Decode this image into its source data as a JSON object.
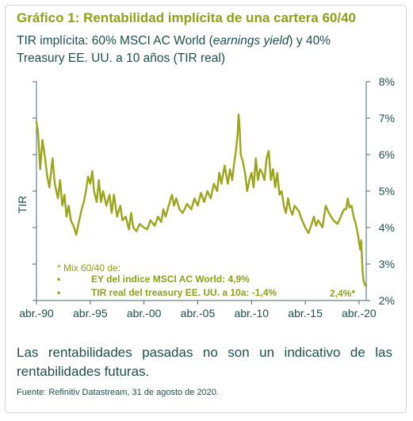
{
  "title": "Gráfico 1: Rentabilidad implícita de una cartera 60/40",
  "subtitle": {
    "part1": "TIR implícita: 60% MSCI AC World (",
    "italic": "earnings yield",
    "part2": ") y 40% Treasury EE. UU. a 10 años (TIR real)"
  },
  "disclaimer": "Las rentabilidades pasadas no son un indicativo de las rentabilidades futuras.",
  "source": "Fuente: Refinitiv Datastream, 31 de agosto de 2020.",
  "colors": {
    "title": "#8ca01a",
    "line": "#9aa51c",
    "text": "#1f4e4f",
    "axis": "#4a6a6a"
  },
  "chart_data": {
    "type": "line",
    "ylabel": "TIR",
    "xlabel": "",
    "y_axis_side": "right",
    "ylim": [
      2,
      8
    ],
    "y_ticks": [
      2,
      3,
      4,
      5,
      6,
      7,
      8
    ],
    "y_tick_labels": [
      "2%",
      "3%",
      "4%",
      "5%",
      "6%",
      "7%",
      "8%"
    ],
    "xlim": [
      1990,
      2020.67
    ],
    "x_ticks": [
      1990,
      1995,
      2000,
      2005,
      2010,
      2015,
      2020
    ],
    "x_tick_labels": [
      "abr.-90",
      "abr.-95",
      "abr.-00",
      "abr.-05",
      "abr.-10",
      "abr.-15",
      "abr.-20"
    ],
    "grid": false,
    "legend": "none",
    "annotation": {
      "heading": "* Mix 60/40 de:",
      "items": [
        "EY del indice MSCI AC World: 4,9%",
        "TIR real del treasury EE. UU. a 10a: -1,4%"
      ],
      "bullet": "•"
    },
    "end_label": "2,4%*",
    "series": [
      {
        "values": [
          [
            1990.0,
            6.9
          ],
          [
            1990.15,
            6.6
          ],
          [
            1990.35,
            5.6
          ],
          [
            1990.55,
            6.4
          ],
          [
            1990.8,
            5.9
          ],
          [
            1991.0,
            5.4
          ],
          [
            1991.2,
            5.1
          ],
          [
            1991.5,
            5.9
          ],
          [
            1991.7,
            5.2
          ],
          [
            1992.0,
            4.8
          ],
          [
            1992.2,
            5.3
          ],
          [
            1992.4,
            4.6
          ],
          [
            1992.6,
            4.9
          ],
          [
            1992.8,
            4.3
          ],
          [
            1993.0,
            4.6
          ],
          [
            1993.2,
            4.2
          ],
          [
            1993.5,
            4.0
          ],
          [
            1993.7,
            3.8
          ],
          [
            1993.9,
            4.1
          ],
          [
            1994.2,
            4.5
          ],
          [
            1994.4,
            4.7
          ],
          [
            1994.6,
            5.0
          ],
          [
            1994.8,
            5.4
          ],
          [
            1995.0,
            5.2
          ],
          [
            1995.2,
            5.55
          ],
          [
            1995.35,
            5.0
          ],
          [
            1995.6,
            4.7
          ],
          [
            1995.8,
            5.3
          ],
          [
            1996.0,
            4.7
          ],
          [
            1996.2,
            5.0
          ],
          [
            1996.5,
            4.6
          ],
          [
            1996.8,
            4.9
          ],
          [
            1997.0,
            4.4
          ],
          [
            1997.2,
            4.9
          ],
          [
            1997.5,
            4.3
          ],
          [
            1997.8,
            4.6
          ],
          [
            1998.0,
            4.2
          ],
          [
            1998.3,
            4.3
          ],
          [
            1998.6,
            3.95
          ],
          [
            1998.8,
            4.4
          ],
          [
            1999.0,
            4.0
          ],
          [
            1999.3,
            3.9
          ],
          [
            1999.6,
            4.1
          ],
          [
            2000.0,
            4.0
          ],
          [
            2000.3,
            3.95
          ],
          [
            2000.6,
            4.2
          ],
          [
            2001.0,
            4.05
          ],
          [
            2001.3,
            4.3
          ],
          [
            2001.6,
            4.15
          ],
          [
            2001.8,
            4.5
          ],
          [
            2002.0,
            4.3
          ],
          [
            2002.3,
            4.6
          ],
          [
            2002.6,
            4.9
          ],
          [
            2002.8,
            4.6
          ],
          [
            2003.0,
            4.8
          ],
          [
            2003.3,
            4.5
          ],
          [
            2003.6,
            4.4
          ],
          [
            2004.0,
            4.65
          ],
          [
            2004.4,
            4.5
          ],
          [
            2004.7,
            4.8
          ],
          [
            2005.0,
            4.6
          ],
          [
            2005.3,
            4.95
          ],
          [
            2005.6,
            4.7
          ],
          [
            2005.9,
            5.0
          ],
          [
            2006.2,
            4.8
          ],
          [
            2006.5,
            5.2
          ],
          [
            2006.8,
            5.0
          ],
          [
            2007.0,
            5.5
          ],
          [
            2007.2,
            5.2
          ],
          [
            2007.5,
            5.7
          ],
          [
            2007.8,
            5.2
          ],
          [
            2008.0,
            5.6
          ],
          [
            2008.2,
            5.3
          ],
          [
            2008.4,
            5.8
          ],
          [
            2008.55,
            6.1
          ],
          [
            2008.7,
            6.5
          ],
          [
            2008.8,
            7.1
          ],
          [
            2008.9,
            6.7
          ],
          [
            2009.0,
            6.0
          ],
          [
            2009.2,
            5.8
          ],
          [
            2009.4,
            5.5
          ],
          [
            2009.6,
            5.0
          ],
          [
            2009.8,
            5.3
          ],
          [
            2010.0,
            5.5
          ],
          [
            2010.2,
            5.1
          ],
          [
            2010.4,
            5.9
          ],
          [
            2010.6,
            5.3
          ],
          [
            2010.8,
            5.6
          ],
          [
            2011.0,
            5.5
          ],
          [
            2011.2,
            5.3
          ],
          [
            2011.4,
            5.9
          ],
          [
            2011.6,
            6.1
          ],
          [
            2011.8,
            5.3
          ],
          [
            2012.0,
            5.6
          ],
          [
            2012.2,
            5.1
          ],
          [
            2012.4,
            5.5
          ],
          [
            2012.6,
            4.9
          ],
          [
            2012.8,
            5.0
          ],
          [
            2013.0,
            4.6
          ],
          [
            2013.2,
            4.4
          ],
          [
            2013.4,
            4.8
          ],
          [
            2013.6,
            4.5
          ],
          [
            2013.8,
            4.35
          ],
          [
            2014.0,
            4.6
          ],
          [
            2014.4,
            4.45
          ],
          [
            2014.7,
            4.2
          ],
          [
            2015.0,
            4.0
          ],
          [
            2015.3,
            3.85
          ],
          [
            2015.6,
            4.1
          ],
          [
            2015.8,
            4.3
          ],
          [
            2016.0,
            4.05
          ],
          [
            2016.2,
            4.2
          ],
          [
            2016.6,
            4.0
          ],
          [
            2016.9,
            4.6
          ],
          [
            2017.2,
            4.4
          ],
          [
            2017.6,
            4.2
          ],
          [
            2018.0,
            4.1
          ],
          [
            2018.3,
            4.3
          ],
          [
            2018.6,
            4.5
          ],
          [
            2018.8,
            4.5
          ],
          [
            2018.95,
            4.8
          ],
          [
            2019.1,
            4.55
          ],
          [
            2019.3,
            4.6
          ],
          [
            2019.5,
            4.3
          ],
          [
            2019.7,
            4.1
          ],
          [
            2019.9,
            3.8
          ],
          [
            2020.0,
            3.6
          ],
          [
            2020.1,
            3.4
          ],
          [
            2020.2,
            3.65
          ],
          [
            2020.27,
            3.2
          ],
          [
            2020.33,
            2.8
          ],
          [
            2020.42,
            2.55
          ],
          [
            2020.52,
            2.45
          ],
          [
            2020.62,
            2.4
          ],
          [
            2020.67,
            2.4
          ]
        ]
      }
    ]
  }
}
